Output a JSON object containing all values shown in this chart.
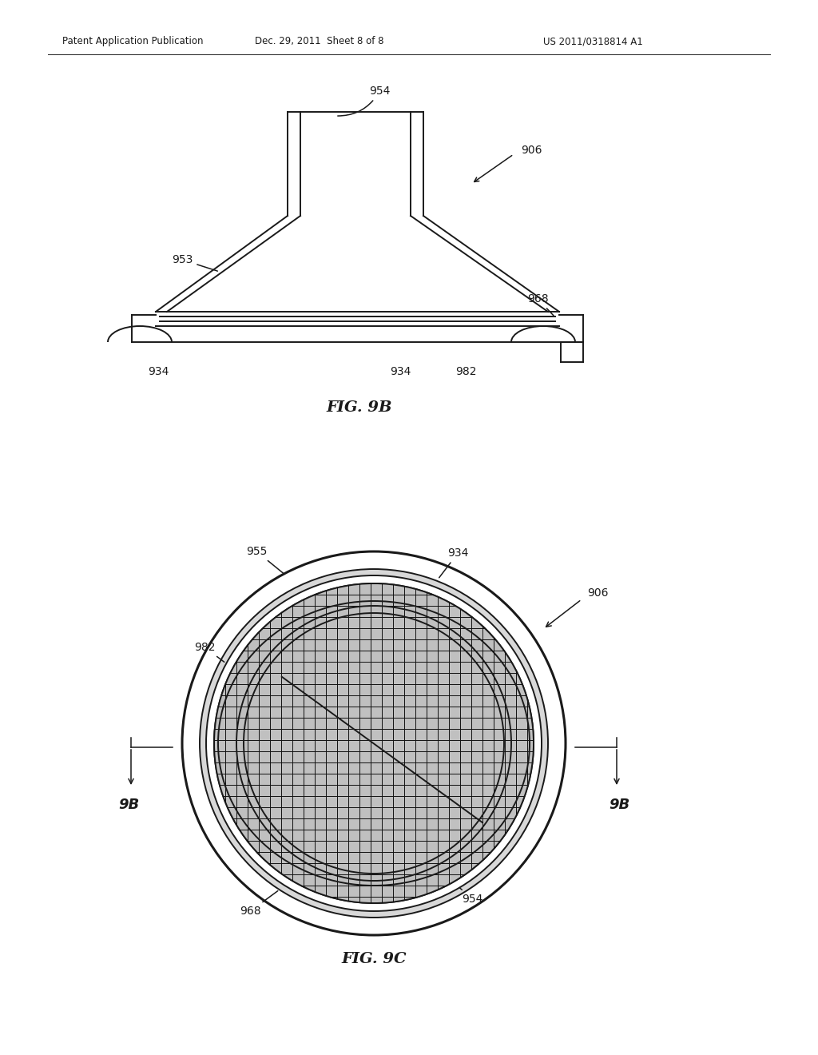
{
  "bg_color": "#ffffff",
  "line_color": "#1a1a1a",
  "header_left": "Patent Application Publication",
  "header_mid": "Dec. 29, 2011  Sheet 8 of 8",
  "header_right": "US 2011/0318814 A1",
  "fig9b_title": "FIG. 9B",
  "fig9c_title": "FIG. 9C",
  "lw_main": 1.4,
  "lw_thick": 2.2,
  "lw_thin": 0.9
}
